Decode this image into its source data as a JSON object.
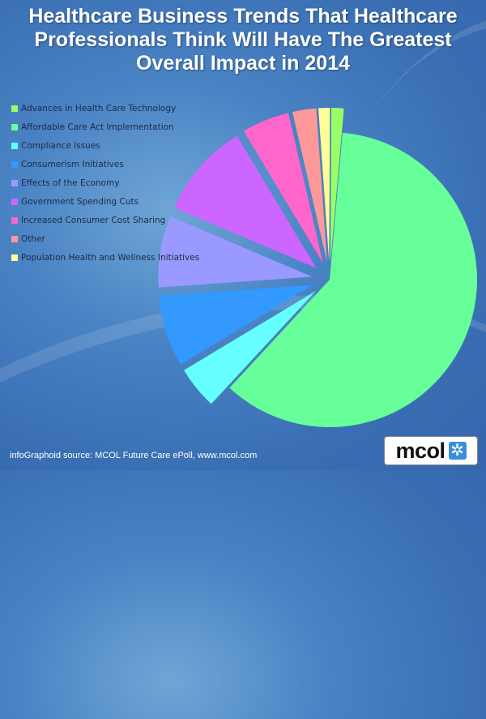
{
  "title": [
    "Healthcare Business Trends That Healthcare",
    "Professionals Think Will Have The Greatest",
    "Overall Impact in 2014"
  ],
  "source": "infoGraphoid source:  MCOL Future Care ePoll, www.mcol.com",
  "logo": {
    "text": "mcol",
    "icon": "asterisk-icon"
  },
  "chart_data": {
    "type": "pie",
    "title": "Healthcare Business Trends That Healthcare Professionals Think Will Have The Greatest Overall Impact in 2014",
    "legend_position": "left",
    "categories": [
      "Advances in Health Care Technology",
      "Affordable Care Act Implementation",
      "Compliance Issues",
      "Consumerism Initiatives",
      "Effects of the Economy",
      "Government Spending Cuts",
      "Increased Consumer Cost Sharing",
      "Other",
      "Population Health and Wellness Initiatives"
    ],
    "values": [
      1.3,
      60.5,
      4.5,
      7.5,
      7.5,
      10,
      5,
      2.5,
      1.2
    ],
    "units": "percent (estimated)",
    "colors": [
      "#99ff66",
      "#66ff99",
      "#66ffff",
      "#3399ff",
      "#9999ff",
      "#cc66ff",
      "#ff66cc",
      "#ff9999",
      "#ffff99"
    ],
    "draw_order": [
      1,
      2,
      3,
      4,
      5,
      6,
      7,
      8,
      0
    ],
    "start_angle_deg": 5
  }
}
